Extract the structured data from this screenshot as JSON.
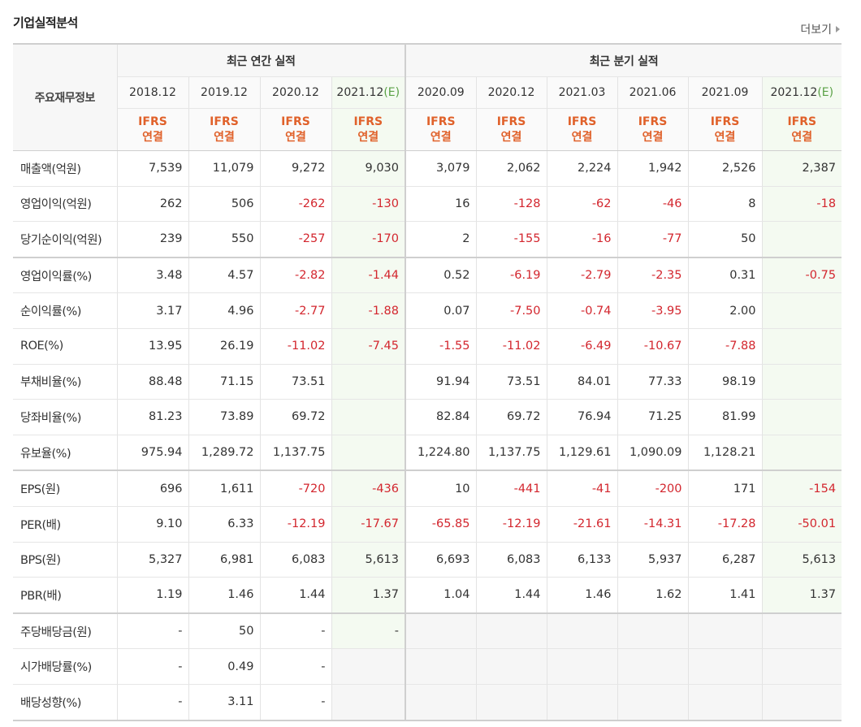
{
  "title": "기업실적분석",
  "more_label": "더보기",
  "header": {
    "row_label": "주요재무정보",
    "annual_group": "최근 연간 실적",
    "quarter_group": "최근 분기 실적",
    "ifrs_line1": "IFRS",
    "ifrs_line2": "연결",
    "estimate_mark": "(E)",
    "periods": [
      {
        "label": "2018.12",
        "est": false
      },
      {
        "label": "2019.12",
        "est": false
      },
      {
        "label": "2020.12",
        "est": false
      },
      {
        "label": "2021.12",
        "est": true
      },
      {
        "label": "2020.09",
        "est": false
      },
      {
        "label": "2020.12",
        "est": false
      },
      {
        "label": "2021.03",
        "est": false
      },
      {
        "label": "2021.06",
        "est": false
      },
      {
        "label": "2021.09",
        "est": false
      },
      {
        "label": "2021.12",
        "est": true
      }
    ]
  },
  "rows": [
    {
      "label": "매출액(억원)",
      "values": [
        "7,539",
        "11,079",
        "9,272",
        "9,030",
        "3,079",
        "2,062",
        "2,224",
        "1,942",
        "2,526",
        "2,387"
      ]
    },
    {
      "label": "영업이익(억원)",
      "values": [
        "262",
        "506",
        "-262",
        "-130",
        "16",
        "-128",
        "-62",
        "-46",
        "8",
        "-18"
      ]
    },
    {
      "label": "당기순이익(억원)",
      "values": [
        "239",
        "550",
        "-257",
        "-170",
        "2",
        "-155",
        "-16",
        "-77",
        "50",
        ""
      ]
    },
    {
      "label": "영업이익률(%)",
      "values": [
        "3.48",
        "4.57",
        "-2.82",
        "-1.44",
        "0.52",
        "-6.19",
        "-2.79",
        "-2.35",
        "0.31",
        "-0.75"
      ]
    },
    {
      "label": "순이익률(%)",
      "values": [
        "3.17",
        "4.96",
        "-2.77",
        "-1.88",
        "0.07",
        "-7.50",
        "-0.74",
        "-3.95",
        "2.00",
        ""
      ]
    },
    {
      "label": "ROE(%)",
      "values": [
        "13.95",
        "26.19",
        "-11.02",
        "-7.45",
        "-1.55",
        "-11.02",
        "-6.49",
        "-10.67",
        "-7.88",
        ""
      ]
    },
    {
      "label": "부채비율(%)",
      "values": [
        "88.48",
        "71.15",
        "73.51",
        "",
        "91.94",
        "73.51",
        "84.01",
        "77.33",
        "98.19",
        ""
      ]
    },
    {
      "label": "당좌비율(%)",
      "values": [
        "81.23",
        "73.89",
        "69.72",
        "",
        "82.84",
        "69.72",
        "76.94",
        "71.25",
        "81.99",
        ""
      ]
    },
    {
      "label": "유보율(%)",
      "values": [
        "975.94",
        "1,289.72",
        "1,137.75",
        "",
        "1,224.80",
        "1,137.75",
        "1,129.61",
        "1,090.09",
        "1,128.21",
        ""
      ]
    },
    {
      "label": "EPS(원)",
      "values": [
        "696",
        "1,611",
        "-720",
        "-436",
        "10",
        "-441",
        "-41",
        "-200",
        "171",
        "-154"
      ]
    },
    {
      "label": "PER(배)",
      "values": [
        "9.10",
        "6.33",
        "-12.19",
        "-17.67",
        "-65.85",
        "-12.19",
        "-21.61",
        "-14.31",
        "-17.28",
        "-50.01"
      ]
    },
    {
      "label": "BPS(원)",
      "values": [
        "5,327",
        "6,981",
        "6,083",
        "5,613",
        "6,693",
        "6,083",
        "6,133",
        "5,937",
        "6,287",
        "5,613"
      ]
    },
    {
      "label": "PBR(배)",
      "values": [
        "1.19",
        "1.46",
        "1.44",
        "1.37",
        "1.04",
        "1.44",
        "1.46",
        "1.62",
        "1.41",
        "1.37"
      ]
    },
    {
      "label": "주당배당금(원)",
      "values": [
        "-",
        "50",
        "-",
        "-",
        "",
        "",
        "",
        "",
        "",
        ""
      ]
    },
    {
      "label": "시가배당률(%)",
      "values": [
        "-",
        "0.49",
        "-",
        "",
        "",
        "",
        "",
        "",
        "",
        ""
      ]
    },
    {
      "label": "배당성향(%)",
      "values": [
        "-",
        "3.11",
        "-",
        "",
        "",
        "",
        "",
        "",
        "",
        ""
      ]
    }
  ],
  "colors": {
    "negative": "#d3262e",
    "ifrs": "#e0612a",
    "estimate_mark": "#5aa146",
    "estimate_bg": "#f4faf1"
  }
}
